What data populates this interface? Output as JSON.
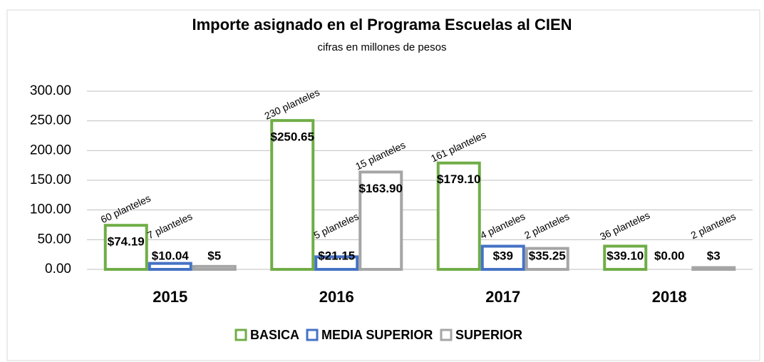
{
  "chart_data": {
    "type": "bar",
    "title": "Importe asignado en el Programa Escuelas al CIEN",
    "subtitle": "cifras en millones de pesos",
    "categories": [
      "2015",
      "2016",
      "2017",
      "2018"
    ],
    "series": [
      {
        "name": "BASICA",
        "color": "#70ad47",
        "values": [
          74.19,
          250.65,
          179.1,
          39.1
        ],
        "value_labels": [
          "$74.19",
          "$250.65",
          "$179.10",
          "$39.10"
        ],
        "notes": [
          "60 planteles",
          "230 planteles",
          "161 planteles",
          "36 planteles"
        ]
      },
      {
        "name": "MEDIA SUPERIOR",
        "color": "#4472c4",
        "values": [
          10.04,
          21.15,
          39,
          0
        ],
        "value_labels": [
          "$10.04",
          "$21.15",
          "$39",
          "$0.00"
        ],
        "notes": [
          "7 planteles",
          "5 planteles",
          "4 planteles",
          null
        ]
      },
      {
        "name": "SUPERIOR",
        "color": "#a5a5a5",
        "values": [
          5,
          163.9,
          35.25,
          3
        ],
        "value_labels": [
          "$5",
          "$163.90",
          "$35.25",
          "$3"
        ],
        "notes": [
          null,
          "15 planteles",
          "2 planteles",
          "2 planteles"
        ]
      }
    ],
    "ylim": [
      0,
      300
    ],
    "yticks": [
      {
        "value": 0,
        "label": "0.00"
      },
      {
        "value": 50,
        "label": "50.00"
      },
      {
        "value": 100,
        "label": "100.00"
      },
      {
        "value": 150,
        "label": "150.00"
      },
      {
        "value": 200,
        "label": "200.00"
      },
      {
        "value": 250,
        "label": "250.00"
      },
      {
        "value": 300,
        "label": "300.00"
      }
    ],
    "grid": true
  }
}
